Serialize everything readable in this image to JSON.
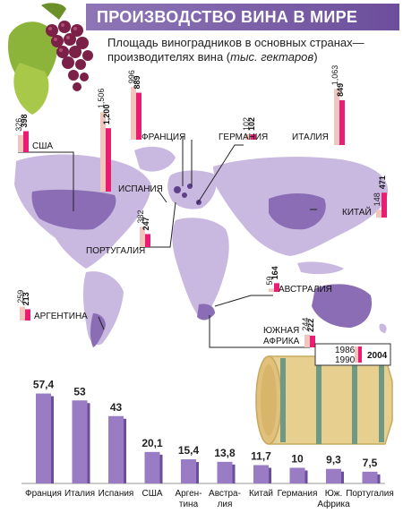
{
  "header": {
    "title": "ПРОИЗВОДСТВО ВИНА В МИРЕ",
    "subtitle_line1": "Площадь виноградников в основных странах—",
    "subtitle_line2_prefix": "производителях вина (",
    "subtitle_line2_units": "тыс. гектаров",
    "subtitle_line2_suffix": ")"
  },
  "legend": {
    "year_1986": "1986",
    "year_1990": "1990",
    "year_2004": "2004"
  },
  "colors": {
    "title_bar": "#7a5fa8",
    "land": "#c9b8df",
    "highlight_land": "#8a6db4",
    "bar_1986": "#f0c6bf",
    "bar_1990": "#e91e73",
    "bar_2004_edge": "#b0135a",
    "production_bar": "#9a7cc4",
    "grapes": "#7b2046",
    "leaves": "#8db43a",
    "barrel": "#e7cf90",
    "barrel_hoops": "#6e9a85"
  },
  "chart_data": [
    {
      "type": "bar",
      "title": "Площадь виноградников в основных странах—производителях вина (тыс. гектаров)",
      "series": [
        {
          "name": "1986",
          "values": [
            326,
            1506,
            996,
            102,
            1063,
            148,
            382,
            59,
            259,
            244
          ]
        },
        {
          "name": "2004",
          "values": [
            398,
            1200,
            889,
            102,
            849,
            471,
            247,
            164,
            213,
            222
          ]
        }
      ],
      "categories": [
        "США",
        "ИСПАНИЯ",
        "ФРАНЦИЯ",
        "ГЕРМАНИЯ",
        "ИТАЛИЯ",
        "КИТАЙ",
        "ПОРТУГАЛИЯ",
        "АВСТРАЛИЯ",
        "АРГЕНТИНА",
        "ЮЖНАЯ АФРИКА"
      ],
      "labels_1986": [
        "326",
        "1,506",
        "996",
        "102",
        "1,063",
        "148",
        "382",
        "59",
        "259",
        "244"
      ],
      "labels_2004": [
        "398",
        "1,200",
        "889",
        "102",
        "849",
        "471",
        "247",
        "164",
        "213",
        "222"
      ],
      "country_labels": [
        "США",
        "ИСПАНИЯ",
        "ФРАНЦИЯ",
        "ГЕРМАНИЯ",
        "ИТАЛИЯ",
        "КИТАЙ",
        "ПОРТУГАЛИЯ",
        "АВСТРАЛИЯ",
        "АРГЕНТИНА",
        "ЮЖНАЯ",
        "АФРИКА"
      ]
    },
    {
      "type": "bar",
      "categories": [
        "Франция",
        "Италия",
        "Испания",
        "США",
        "Аргентина",
        "Австралия",
        "Китай",
        "Германия",
        "Юж. Африка",
        "Португалия"
      ],
      "category_labels": [
        [
          "Франция"
        ],
        [
          "Италия"
        ],
        [
          "Испания"
        ],
        [
          "США"
        ],
        [
          "Арген-",
          "тина"
        ],
        [
          "Австра-",
          "лия"
        ],
        [
          "Китай"
        ],
        [
          "Германия"
        ],
        [
          "Юж.",
          "Африка"
        ],
        [
          "Португалия"
        ]
      ],
      "values": [
        57.4,
        53,
        43,
        20.1,
        15.4,
        13.8,
        11.7,
        10,
        9.3,
        7.5
      ],
      "value_labels": [
        "57,4",
        "53",
        "43",
        "20,1",
        "15,4",
        "13,8",
        "11,7",
        "10",
        "9,3",
        "7,5"
      ],
      "ylim": [
        0,
        60
      ]
    }
  ]
}
